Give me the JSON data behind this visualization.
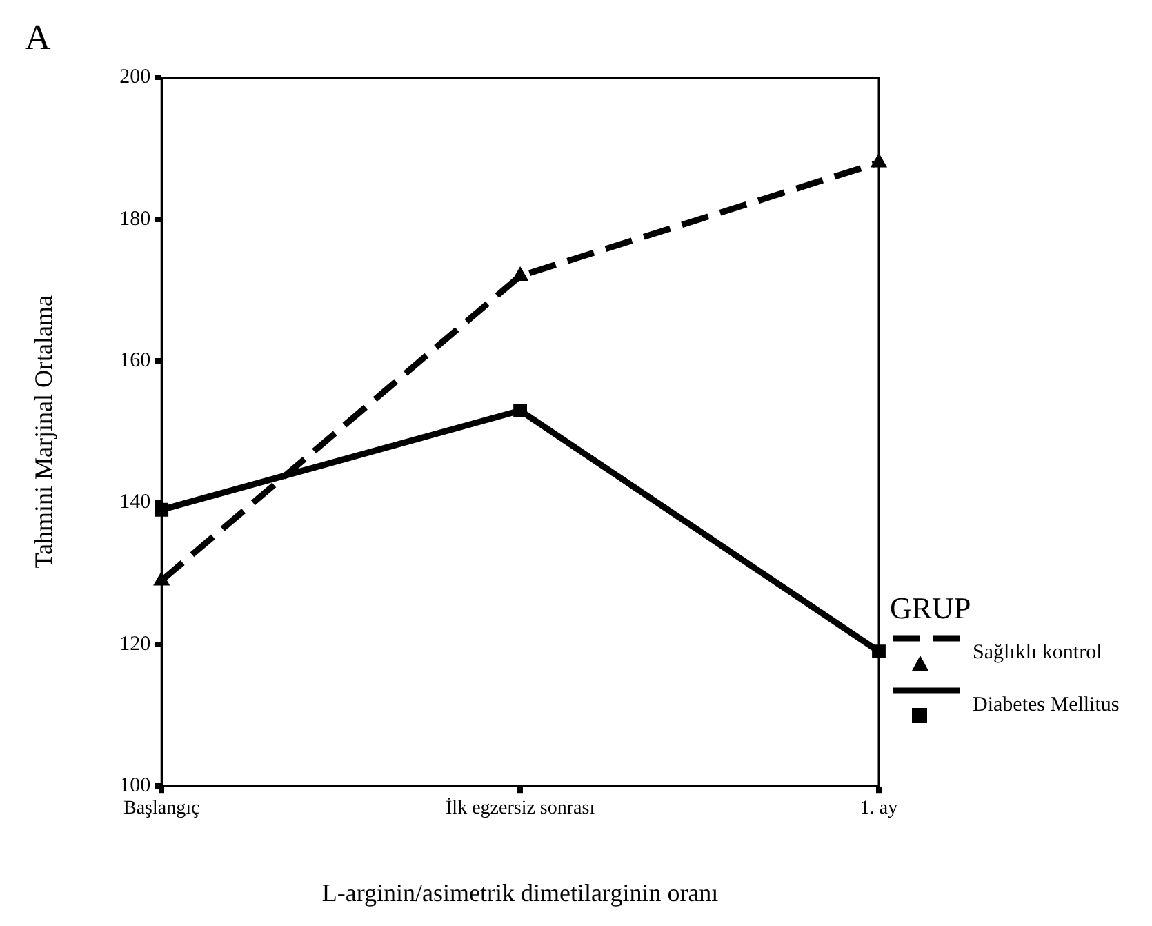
{
  "chart_data": {
    "type": "line",
    "title": "A",
    "xlabel": "L-arginin/asimetrik dimetilarginin oranı",
    "ylabel": "Tahmini Marjinal Ortalama",
    "legend_title": "GRUP",
    "categories": [
      "Başlangıç",
      "İlk egzersiz sonrası",
      "1. ay"
    ],
    "series": [
      {
        "name": "Sağlıklı kontrol",
        "color": "#000000",
        "values": [
          129,
          172,
          188
        ],
        "marker": "triangle",
        "line_style": "dashed"
      },
      {
        "name": "Diabetes Mellitus",
        "color": "#000000",
        "values": [
          139,
          153,
          119
        ],
        "marker": "square",
        "line_style": "solid"
      }
    ],
    "ylim": [
      100,
      200
    ],
    "yticks": [
      100,
      120,
      140,
      160,
      180,
      200
    ],
    "grid": false,
    "legend": "right"
  }
}
